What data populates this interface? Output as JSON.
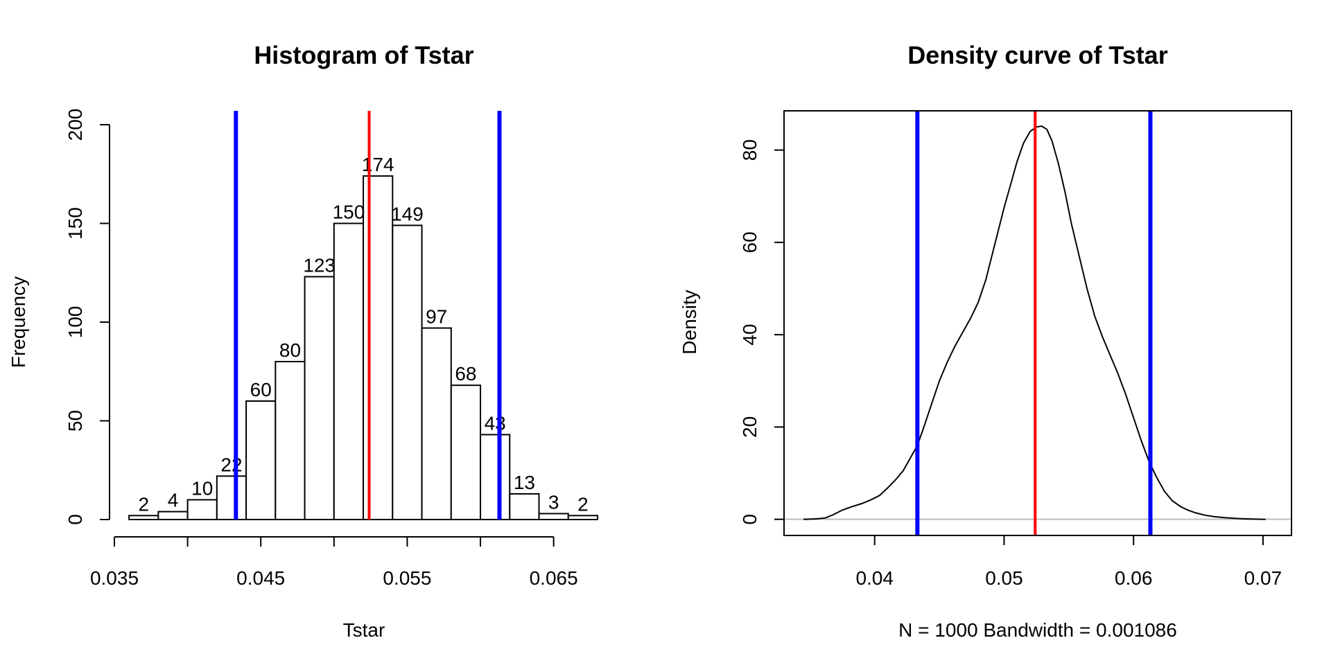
{
  "chart_data": [
    {
      "type": "bar",
      "title": "Histogram of Tstar",
      "xlabel": "Tstar",
      "ylabel": "Frequency",
      "bin_width": 0.002,
      "bin_start": 0.036,
      "counts": [
        2,
        4,
        10,
        22,
        60,
        80,
        123,
        150,
        174,
        149,
        97,
        68,
        43,
        13,
        3,
        2
      ],
      "xlim": [
        0.035,
        0.068
      ],
      "ylim": [
        0,
        200
      ],
      "x_ticks": [
        0.035,
        0.045,
        0.055,
        0.065
      ],
      "x_tick_labels": [
        "0.035",
        "0.045",
        "0.055",
        "0.065"
      ],
      "x_minor_ticks": [
        0.035,
        0.04,
        0.045,
        0.05,
        0.055,
        0.06,
        0.065
      ],
      "y_ticks": [
        0,
        50,
        100,
        150,
        200
      ],
      "y_tick_labels": [
        "0",
        "50",
        "100",
        "150",
        "200"
      ],
      "vlines": [
        {
          "x": 0.0433,
          "color": "#0000ff",
          "role": "lower"
        },
        {
          "x": 0.0524,
          "color": "#ff0000",
          "role": "center"
        },
        {
          "x": 0.0613,
          "color": "#0000ff",
          "role": "upper"
        }
      ],
      "grid": false
    },
    {
      "type": "line",
      "title": "Density curve of Tstar",
      "xlabel": "N = 1000   Bandwidth = 0.001086",
      "ylabel": "Density",
      "xlim": [
        0.033,
        0.0722
      ],
      "ylim": [
        -3.5,
        88.5
      ],
      "x_ticks": [
        0.04,
        0.05,
        0.06,
        0.07
      ],
      "x_tick_labels": [
        "0.04",
        "0.05",
        "0.06",
        "0.07"
      ],
      "y_ticks": [
        0,
        20,
        40,
        60,
        80
      ],
      "y_tick_labels": [
        "0",
        "20",
        "40",
        "60",
        "80"
      ],
      "x": [
        0.0345,
        0.0355,
        0.0362,
        0.0368,
        0.0375,
        0.0382,
        0.039,
        0.0397,
        0.0404,
        0.041,
        0.0416,
        0.0422,
        0.0427,
        0.0433,
        0.0438,
        0.0444,
        0.045,
        0.0456,
        0.0462,
        0.0468,
        0.0474,
        0.048,
        0.0486,
        0.049,
        0.0495,
        0.05,
        0.0505,
        0.051,
        0.0515,
        0.052,
        0.0525,
        0.0529,
        0.0533,
        0.0537,
        0.0542,
        0.0547,
        0.0552,
        0.0558,
        0.0564,
        0.057,
        0.0576,
        0.0582,
        0.0588,
        0.0594,
        0.06,
        0.0606,
        0.0612,
        0.0618,
        0.0624,
        0.063,
        0.0636,
        0.0642,
        0.0648,
        0.0655,
        0.0662,
        0.067,
        0.0678,
        0.0686,
        0.0694,
        0.0702
      ],
      "y": [
        0,
        0.1,
        0.3,
        1,
        2,
        2.7,
        3.4,
        4.2,
        5.2,
        6.8,
        8.5,
        10.5,
        13,
        16,
        20,
        25,
        30,
        34,
        37.5,
        40.5,
        43.5,
        47,
        52,
        56.5,
        62,
        67.5,
        72.5,
        77.5,
        81.5,
        84,
        85,
        85.2,
        84.5,
        82,
        77,
        71,
        64,
        57,
        50,
        44,
        39.5,
        35.5,
        31.5,
        27,
        22,
        17,
        12.5,
        9,
        6,
        4,
        2.8,
        2,
        1.4,
        0.9,
        0.6,
        0.35,
        0.2,
        0.1,
        0.04,
        0
      ],
      "vlines": [
        {
          "x": 0.0433,
          "color": "#0000ff",
          "role": "lower"
        },
        {
          "x": 0.0524,
          "color": "#ff0000",
          "role": "center"
        },
        {
          "x": 0.0613,
          "color": "#0000ff",
          "role": "upper"
        }
      ],
      "baseline_color": "#bebebe",
      "grid": false
    }
  ]
}
